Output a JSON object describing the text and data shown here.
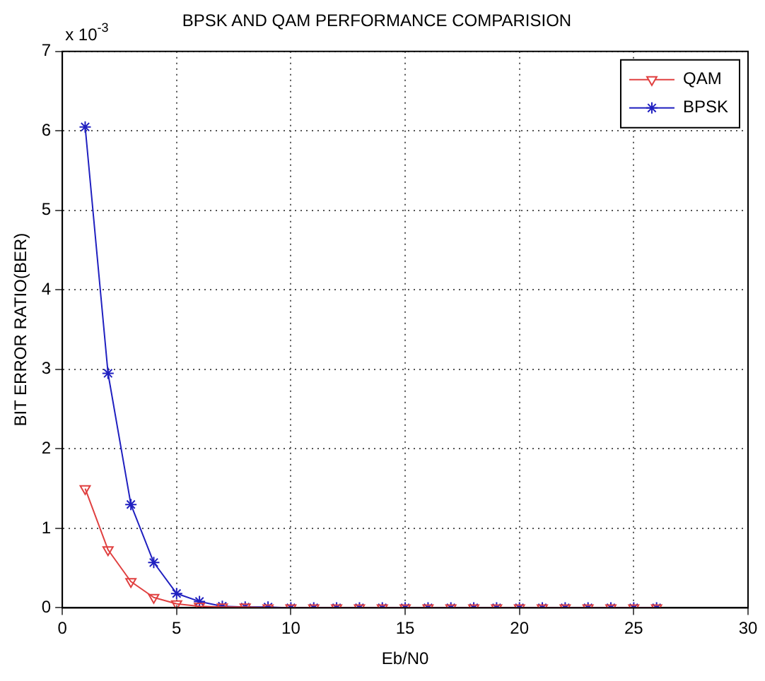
{
  "chart_data": {
    "type": "line",
    "title": "BPSK AND QAM PERFORMANCE COMPARISION",
    "xlabel": "Eb/N0",
    "ylabel": "BIT ERROR RATIO(BER)",
    "annotations": [
      "x 10$^{-3}$"
    ],
    "x": [
      1,
      2,
      3,
      4,
      5,
      6,
      7,
      8,
      9,
      10,
      11,
      12,
      13,
      14,
      15,
      16,
      17,
      18,
      19,
      20,
      21,
      22,
      23,
      24,
      25,
      26
    ],
    "series": [
      {
        "name": "QAM",
        "color": "#e04040",
        "marker": "triangle",
        "values": [
          1.5,
          0.73,
          0.33,
          0.13,
          0.05,
          0.02,
          0.01,
          0.01,
          0,
          0,
          0,
          0,
          0,
          0,
          0,
          0,
          0,
          0,
          0,
          0,
          0,
          0,
          0,
          0,
          0,
          0
        ]
      },
      {
        "name": "BPSK",
        "color": "#2020c0",
        "marker": "cross",
        "values": [
          6.05,
          2.95,
          1.3,
          0.57,
          0.18,
          0.08,
          0.02,
          0.01,
          0.01,
          0,
          0,
          0,
          0,
          0,
          0,
          0,
          0,
          0,
          0,
          0,
          0,
          0,
          0,
          0,
          0,
          0
        ]
      }
    ],
    "xlim": [
      0,
      30
    ],
    "xticks": [
      0,
      5,
      10,
      15,
      20,
      25,
      30
    ],
    "ylim": [
      0,
      7
    ],
    "yticks": [
      0,
      1,
      2,
      3,
      4,
      5,
      6,
      7
    ],
    "grid": true,
    "legend": "top right",
    "line_style": "solid"
  }
}
